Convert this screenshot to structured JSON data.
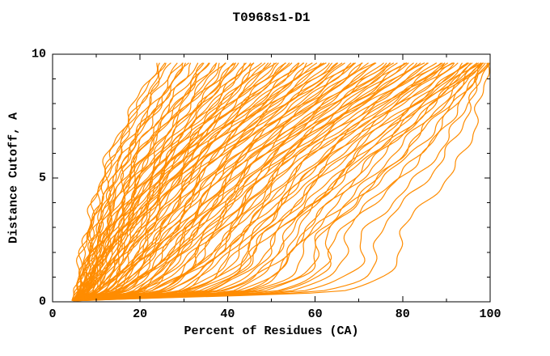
{
  "chart_data": {
    "type": "line",
    "title": "T0968s1-D1",
    "xlabel": "Percent of Residues (CA)",
    "ylabel": "Distance Cutoff, A",
    "xlim": [
      0,
      100
    ],
    "ylim": [
      0,
      10
    ],
    "x_tick_values": [
      0,
      20,
      40,
      60,
      80,
      100
    ],
    "x_tick_labels": [
      "0",
      "20",
      "40",
      "60",
      "80",
      "100"
    ],
    "x_minor_ticks": [
      10,
      30,
      50,
      70,
      90
    ],
    "y_tick_values": [
      0,
      5,
      10
    ],
    "y_tick_labels": [
      "0",
      "5",
      "10"
    ],
    "y_minor_ticks": [
      1,
      2,
      3,
      4,
      6,
      7,
      8,
      9
    ],
    "grid": false,
    "legend": "none",
    "line_color": "#FF8C00",
    "axis_color": "#000000",
    "background": "#FFFFFF",
    "cutoff_anchors": [
      0.05,
      0.45,
      3,
      6,
      9.65
    ],
    "curves": [
      [
        4.6,
        5.2,
        8,
        13,
        24
      ],
      [
        5.0,
        6.1,
        9,
        14,
        25.5
      ],
      [
        4.4,
        5.6,
        8.5,
        15,
        27
      ],
      [
        5.3,
        6.8,
        10,
        16,
        28
      ],
      [
        4.8,
        5.9,
        9.5,
        14.5,
        26
      ],
      [
        5.6,
        7.2,
        11,
        17,
        29.5
      ],
      [
        4.5,
        5.4,
        8.2,
        13.8,
        25
      ],
      [
        5.1,
        6.4,
        10.5,
        16.5,
        30
      ],
      [
        4.7,
        6.0,
        10,
        17,
        31
      ],
      [
        5.4,
        7.1,
        12,
        19,
        33
      ],
      [
        4.9,
        6.5,
        11,
        18,
        32
      ],
      [
        5.8,
        7.8,
        13,
        21,
        35
      ],
      [
        4.5,
        5.8,
        10.5,
        17.5,
        30.5
      ],
      [
        5.2,
        7.4,
        12.5,
        20,
        34
      ],
      [
        4.8,
        6.2,
        11.5,
        19.5,
        36
      ],
      [
        5.5,
        8.0,
        13.5,
        22,
        35.5
      ],
      [
        4.6,
        6.3,
        12,
        20,
        37
      ],
      [
        5.3,
        7.6,
        14,
        23,
        39
      ],
      [
        4.9,
        6.9,
        13,
        21.5,
        38
      ],
      [
        5.7,
        8.4,
        15,
        25,
        41
      ],
      [
        4.4,
        6.0,
        12.5,
        22,
        40
      ],
      [
        5.1,
        7.2,
        14.5,
        24,
        42
      ],
      [
        4.8,
        6.6,
        13.5,
        23.5,
        38.5
      ],
      [
        5.5,
        8.8,
        16,
        26,
        41.5
      ],
      [
        4.7,
        7.0,
        14,
        24,
        43
      ],
      [
        5.4,
        8.6,
        16,
        27,
        45
      ],
      [
        5.0,
        7.7,
        15,
        25.5,
        44
      ],
      [
        5.9,
        9.5,
        17.5,
        29,
        47
      ],
      [
        4.5,
        6.8,
        14.5,
        26,
        46
      ],
      [
        5.2,
        8.2,
        16.5,
        28,
        48
      ],
      [
        4.8,
        7.4,
        15.5,
        27,
        44.5
      ],
      [
        5.6,
        10,
        18,
        30,
        47.5
      ],
      [
        4.6,
        7.5,
        16,
        27,
        49
      ],
      [
        5.3,
        9.8,
        18.5,
        30,
        51
      ],
      [
        4.9,
        8.5,
        17,
        28.5,
        50
      ],
      [
        5.8,
        11,
        20,
        32,
        53
      ],
      [
        4.4,
        7.0,
        16.5,
        29,
        52
      ],
      [
        5.1,
        9.0,
        19,
        31,
        54
      ],
      [
        4.7,
        8.0,
        17.5,
        30.5,
        50.5
      ],
      [
        5.5,
        12,
        21,
        33,
        53.5
      ],
      [
        4.8,
        8.8,
        18,
        30,
        55
      ],
      [
        5.5,
        12,
        21,
        34,
        57
      ],
      [
        5.0,
        10,
        19.5,
        32,
        56
      ],
      [
        5.9,
        14,
        23,
        36,
        59
      ],
      [
        4.5,
        8.2,
        18.5,
        33,
        58
      ],
      [
        5.2,
        11,
        22,
        35,
        60
      ],
      [
        4.9,
        9.4,
        20,
        34,
        56.5
      ],
      [
        5.6,
        13,
        24,
        37,
        59.5
      ],
      [
        4.6,
        10,
        21,
        34,
        61
      ],
      [
        5.4,
        14,
        25,
        38,
        63
      ],
      [
        5.0,
        12,
        23,
        36,
        62
      ],
      [
        5.8,
        16,
        27,
        40,
        65
      ],
      [
        4.5,
        9.5,
        22,
        37,
        64
      ],
      [
        5.2,
        13,
        26,
        39,
        66
      ],
      [
        4.8,
        11,
        24,
        38,
        62.5
      ],
      [
        5.6,
        15,
        28,
        41,
        65.5
      ],
      [
        4.7,
        12,
        25,
        39,
        67
      ],
      [
        5.5,
        17,
        29,
        43,
        69
      ],
      [
        5.1,
        14,
        27,
        41,
        68
      ],
      [
        5.9,
        20,
        31,
        45,
        71
      ],
      [
        4.6,
        11,
        26,
        42,
        70
      ],
      [
        5.3,
        16,
        30,
        44,
        72
      ],
      [
        4.9,
        13,
        28,
        43,
        68.5
      ],
      [
        5.7,
        19,
        32,
        46,
        71.5
      ],
      [
        4.8,
        14,
        29,
        44,
        73
      ],
      [
        5.6,
        21,
        33,
        48,
        75
      ],
      [
        5.0,
        17,
        31,
        46,
        74
      ],
      [
        6.0,
        25,
        36,
        50,
        77
      ],
      [
        4.5,
        13,
        30,
        47,
        76
      ],
      [
        5.3,
        19,
        34,
        49,
        78
      ],
      [
        4.9,
        16,
        32,
        48,
        74.5
      ],
      [
        5.7,
        23,
        37,
        51,
        77.5
      ],
      [
        4.6,
        17,
        33,
        49,
        79
      ],
      [
        5.4,
        25,
        38,
        53,
        81
      ],
      [
        5.0,
        20,
        35,
        51,
        80
      ],
      [
        5.9,
        29,
        41,
        55,
        83
      ],
      [
        4.7,
        16,
        34,
        52,
        82
      ],
      [
        5.2,
        23,
        39,
        54,
        84
      ],
      [
        4.8,
        19,
        36,
        53,
        80.5
      ],
      [
        5.6,
        27,
        42,
        56,
        83.5
      ],
      [
        4.7,
        21,
        38,
        54,
        85
      ],
      [
        5.5,
        31,
        44,
        59,
        87
      ],
      [
        5.1,
        25,
        41,
        56,
        86
      ],
      [
        6.0,
        36,
        47,
        62,
        89
      ],
      [
        4.6,
        19,
        39,
        57,
        88
      ],
      [
        5.3,
        28,
        45,
        60,
        90
      ],
      [
        4.9,
        23,
        42,
        58,
        86.5
      ],
      [
        5.7,
        34,
        48,
        63,
        89.5
      ],
      [
        4.8,
        26,
        44,
        60,
        90.5
      ],
      [
        5.6,
        38,
        52,
        66,
        92
      ],
      [
        5.2,
        31,
        47,
        63,
        91
      ],
      [
        6.1,
        44,
        56,
        70,
        94
      ],
      [
        4.7,
        24,
        45,
        64,
        93
      ],
      [
        5.4,
        35,
        50,
        68,
        95
      ],
      [
        5.0,
        29,
        48,
        65,
        91.5
      ],
      [
        5.8,
        41,
        54,
        71,
        94.5
      ],
      [
        4.9,
        33,
        50,
        67,
        95.5
      ],
      [
        5.7,
        46,
        60,
        76,
        96.5
      ],
      [
        5.3,
        39,
        55,
        72,
        96
      ],
      [
        6.2,
        52,
        64,
        80,
        97.5
      ],
      [
        4.8,
        30,
        52,
        70,
        97
      ],
      [
        5.5,
        43,
        58,
        75,
        98
      ],
      [
        5.1,
        36,
        53,
        73,
        96.2
      ],
      [
        5.9,
        49,
        62,
        78,
        97.8
      ],
      [
        5.0,
        42,
        58,
        74,
        98.2
      ],
      [
        5.8,
        55,
        68,
        84,
        98.8
      ],
      [
        5.4,
        48,
        63,
        80,
        98.5
      ],
      [
        6.3,
        62,
        75,
        90,
        99.3
      ],
      [
        4.9,
        38,
        60,
        82,
        99
      ],
      [
        5.6,
        58,
        72,
        88,
        99.5
      ],
      [
        5.2,
        52,
        66,
        85,
        98.9
      ],
      [
        6.0,
        66,
        80,
        94,
        99.6
      ]
    ]
  }
}
